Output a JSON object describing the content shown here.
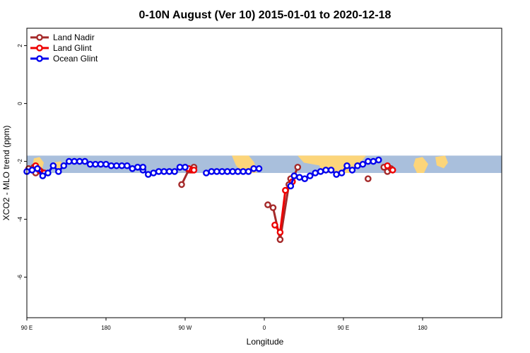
{
  "chart_data": {
    "type": "line",
    "title": "0-10N August (Ver 10)   2015-01-01 to 2020-12-18",
    "xlabel": "Longitude",
    "ylabel": "XCO2 - MLO trend (ppm)",
    "xlim": [
      -90,
      180
    ],
    "ylim": [
      -7.4,
      2.6
    ],
    "x_ticks": [
      {
        "value": -90,
        "label": "90 E"
      },
      {
        "value": -45,
        "label": "180"
      },
      {
        "value": 0,
        "label": "90 W"
      },
      {
        "value": 45,
        "label": "0"
      },
      {
        "value": 90,
        "label": "90 E"
      },
      {
        "value": 135,
        "label": "180"
      }
    ],
    "y_ticks": [
      {
        "value": 2,
        "label": "2"
      },
      {
        "value": 0,
        "label": "0"
      },
      {
        "value": -2,
        "label": "-2"
      },
      {
        "value": -4,
        "label": "-4"
      },
      {
        "value": -6,
        "label": "-6"
      }
    ],
    "map_band": {
      "y_range": [
        -2.4,
        -1.8
      ],
      "ocean_color": "#a9bfdc",
      "land_color": "#fcd57a"
    },
    "legend": {
      "position": "top-left"
    },
    "series": [
      {
        "name": "Land Nadir",
        "color": "#a52a2a",
        "segments": [
          [
            [
              -89,
              -2.25
            ],
            [
              -86,
              -2.2
            ],
            [
              -85,
              -2.4
            ],
            [
              -82,
              -2.35
            ],
            [
              -80,
              -2.4
            ]
          ],
          [
            [
              -2,
              -2.8
            ],
            [
              2,
              -2.3
            ],
            [
              3,
              -2.3
            ],
            [
              5,
              -2.2
            ]
          ],
          [
            [
              47,
              -3.5
            ],
            [
              50,
              -3.6
            ],
            [
              54,
              -4.7
            ],
            [
              59,
              -2.8
            ],
            [
              60,
              -2.6
            ],
            [
              62,
              -2.5
            ],
            [
              64,
              -2.2
            ]
          ],
          [
            [
              104,
              -2.6
            ]
          ],
          [
            [
              113,
              -2.2
            ],
            [
              115,
              -2.35
            ],
            [
              117,
              -2.25
            ]
          ]
        ]
      },
      {
        "name": "Land Glint",
        "color": "#ee0000",
        "segments": [
          [
            [
              -85,
              -2.15
            ],
            [
              -83,
              -2.3
            ],
            [
              -80,
              -2.4
            ]
          ],
          [
            [
              2,
              -2.25
            ],
            [
              4,
              -2.3
            ],
            [
              5,
              -2.3
            ]
          ],
          [
            [
              51,
              -4.2
            ],
            [
              54,
              -4.45
            ],
            [
              57,
              -3.0
            ],
            [
              61,
              -2.7
            ]
          ],
          [
            [
              115,
              -2.15
            ],
            [
              118,
              -2.3
            ]
          ]
        ]
      },
      {
        "name": "Ocean Glint",
        "color": "#0000ee",
        "segments": [
          [
            [
              -90,
              -2.35
            ],
            [
              -87,
              -2.3
            ],
            [
              -84,
              -2.25
            ],
            [
              -81,
              -2.5
            ],
            [
              -78,
              -2.4
            ],
            [
              -75,
              -2.15
            ],
            [
              -72,
              -2.35
            ],
            [
              -69,
              -2.15
            ],
            [
              -66,
              -2.0
            ],
            [
              -63,
              -2.0
            ],
            [
              -60,
              -2.0
            ],
            [
              -57,
              -2.0
            ],
            [
              -54,
              -2.1
            ],
            [
              -51,
              -2.1
            ],
            [
              -48,
              -2.1
            ],
            [
              -45,
              -2.1
            ],
            [
              -42,
              -2.15
            ],
            [
              -39,
              -2.15
            ],
            [
              -36,
              -2.15
            ],
            [
              -33,
              -2.15
            ],
            [
              -30,
              -2.25
            ],
            [
              -27,
              -2.2
            ],
            [
              -24,
              -2.3
            ],
            [
              -21,
              -2.45
            ],
            [
              -18,
              -2.4
            ],
            [
              -15,
              -2.35
            ],
            [
              -12,
              -2.35
            ],
            [
              -9,
              -2.35
            ],
            [
              -6,
              -2.35
            ],
            [
              -3,
              -2.2
            ],
            [
              0,
              -2.2
            ]
          ],
          [
            [
              -24,
              -2.2
            ]
          ],
          [
            [
              12,
              -2.4
            ],
            [
              15,
              -2.35
            ],
            [
              18,
              -2.35
            ],
            [
              21,
              -2.35
            ],
            [
              24,
              -2.35
            ],
            [
              27,
              -2.35
            ],
            [
              30,
              -2.35
            ],
            [
              33,
              -2.35
            ],
            [
              36,
              -2.35
            ],
            [
              39,
              -2.25
            ],
            [
              42,
              -2.25
            ]
          ],
          [
            [
              60,
              -2.85
            ],
            [
              62,
              -2.5
            ],
            [
              65,
              -2.55
            ],
            [
              68,
              -2.6
            ],
            [
              71,
              -2.5
            ],
            [
              74,
              -2.4
            ],
            [
              77,
              -2.35
            ],
            [
              80,
              -2.3
            ],
            [
              83,
              -2.3
            ],
            [
              86,
              -2.45
            ],
            [
              89,
              -2.4
            ],
            [
              92,
              -2.15
            ],
            [
              95,
              -2.3
            ],
            [
              98,
              -2.15
            ],
            [
              101,
              -2.1
            ],
            [
              104,
              -2.0
            ],
            [
              107,
              -2.0
            ],
            [
              110,
              -1.95
            ]
          ]
        ]
      }
    ]
  }
}
